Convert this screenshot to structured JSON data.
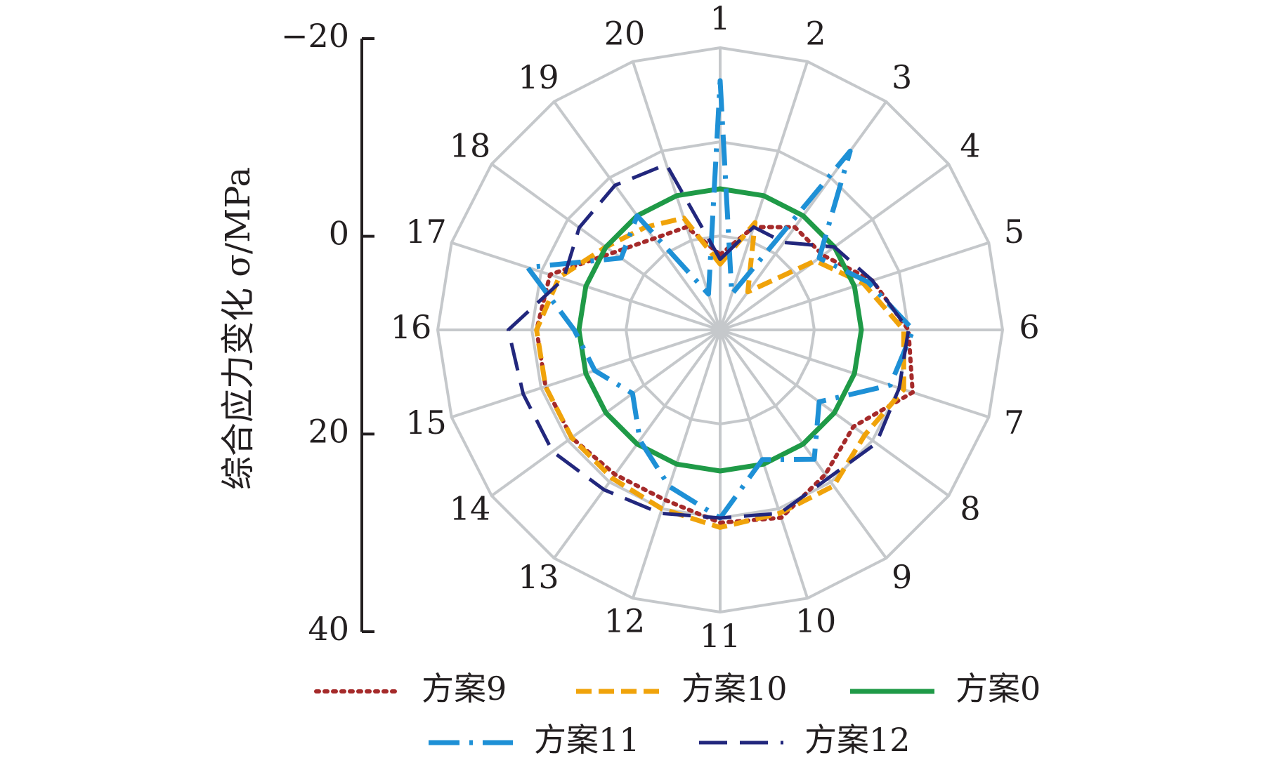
{
  "chart_data": {
    "type": "radar",
    "title": "",
    "ylabel": "综合应力变化 σ/MPa",
    "axis": {
      "ticks": [
        -20,
        0,
        20,
        40
      ],
      "tick_labels": [
        "−20",
        "0",
        "20",
        "40"
      ],
      "range": [
        -20,
        40
      ],
      "inverted": true
    },
    "categories": [
      "1",
      "2",
      "3",
      "4",
      "5",
      "6",
      "7",
      "8",
      "9",
      "10",
      "11",
      "12",
      "13",
      "14",
      "15",
      "16",
      "17",
      "18",
      "19",
      "20"
    ],
    "grid": true,
    "legend_position": "bottom",
    "series": [
      {
        "name": "方案9",
        "color": "#a52a2a",
        "style": "dotted",
        "values": [
          -4,
          3,
          7,
          7,
          14,
          20,
          23,
          15,
          18,
          22,
          21,
          18,
          18,
          19,
          19,
          19,
          18,
          8,
          4,
          3
        ]
      },
      {
        "name": "方案10",
        "color": "#f0a30a",
        "style": "dashed",
        "values": [
          -6,
          4,
          -10,
          5,
          12,
          19,
          21,
          18,
          21,
          21,
          22,
          20,
          19,
          19,
          19,
          19,
          16,
          10,
          7,
          5
        ]
      },
      {
        "name": "方案0",
        "color": "#1f9a47",
        "style": "solid",
        "values": [
          10,
          10,
          10,
          10,
          10,
          10,
          10,
          10,
          10,
          10,
          10,
          10,
          10,
          10,
          10,
          10,
          10,
          10,
          10,
          10
        ]
      },
      {
        "name": "方案11",
        "color": "#1e90d6",
        "style": "dashdot",
        "values": [
          33,
          -12,
          27,
          6,
          13,
          21,
          18,
          6,
          14,
          9,
          20,
          15,
          9,
          3,
          8,
          11,
          23,
          6,
          10,
          -12
        ]
      },
      {
        "name": "方案12",
        "color": "#22277d",
        "style": "longdash",
        "values": [
          -5,
          3,
          3,
          10,
          14,
          20,
          20,
          21,
          19,
          21,
          20,
          21,
          22,
          24,
          24,
          25,
          15,
          17,
          18,
          17
        ]
      }
    ]
  }
}
